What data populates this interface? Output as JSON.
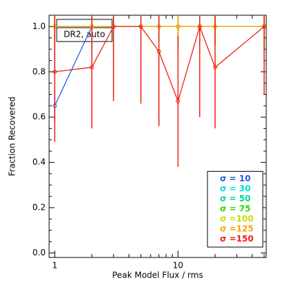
{
  "chart_data": {
    "type": "line",
    "x_label": "Peak Model Flux / rms",
    "y_label": "Fraction Recovered",
    "annotation": "DR2, auto",
    "x": [
      1,
      2,
      3,
      5,
      7,
      10,
      15,
      20,
      50
    ],
    "xlim": [
      0.9,
      52
    ],
    "xscale": "log",
    "xticks": [
      1,
      10
    ],
    "ylim": [
      -0.02,
      1.05
    ],
    "yticks": [
      {
        "value": 0,
        "label": "0.0"
      },
      0.2,
      0.4,
      0.6,
      0.8,
      {
        "value": 1,
        "label": "1.0"
      }
    ],
    "legend": "lower right",
    "series": [
      {
        "name": "σ = 10",
        "color": "#1f5fe0",
        "values": [
          0.65,
          1,
          1,
          1,
          1,
          1,
          1,
          1,
          1
        ],
        "errors": [
          0.07,
          0.05,
          0.05,
          0.03,
          0.03,
          0.03,
          0.03,
          0.03,
          0.03
        ]
      },
      {
        "name": "σ = 30",
        "color": "#00dcdc",
        "values": [
          1,
          1,
          1,
          1,
          1,
          1,
          1,
          1,
          1
        ],
        "errors": [
          0.1,
          0.08,
          0.08,
          0.1,
          0.06,
          0.08,
          0.08,
          0.06,
          0.06
        ]
      },
      {
        "name": "σ = 50",
        "color": "#00d890",
        "values": [
          1,
          1,
          1,
          1,
          1,
          1,
          1,
          1,
          1
        ],
        "errors": [
          0.2,
          0.12,
          0.12,
          0.15,
          0.12,
          0.1,
          0.12,
          0.08,
          0.1
        ]
      },
      {
        "name": "σ = 75",
        "color": "#30d800",
        "values": [
          1,
          1,
          1,
          1,
          1,
          1,
          1,
          1,
          1
        ],
        "errors": [
          0.15,
          0.1,
          0.1,
          0.12,
          0.08,
          0.12,
          0.1,
          0.08,
          0.12
        ]
      },
      {
        "name": "σ =100",
        "color": "#c8dc00",
        "values": [
          1,
          1,
          1,
          1,
          1,
          1,
          1,
          1,
          1
        ],
        "errors": [
          0.12,
          0.08,
          0.08,
          0.1,
          0.06,
          0.08,
          0.06,
          0.06,
          0.08
        ]
      },
      {
        "name": "σ =125",
        "color": "#ffa000",
        "values": [
          1,
          1,
          1,
          1,
          1,
          1,
          1,
          1,
          1
        ],
        "errors": [
          0.1,
          0.06,
          0.06,
          0.08,
          0.05,
          0.06,
          0.05,
          0.05,
          0.08
        ]
      },
      {
        "name": "σ =150",
        "color": "#f02010",
        "values": [
          0.8,
          0.82,
          1,
          1,
          0.89,
          0.67,
          1,
          0.82,
          1
        ],
        "errors": [
          0.31,
          0.27,
          0.33,
          0.34,
          0.33,
          0.29,
          0.4,
          0.27,
          0.3
        ]
      }
    ]
  }
}
